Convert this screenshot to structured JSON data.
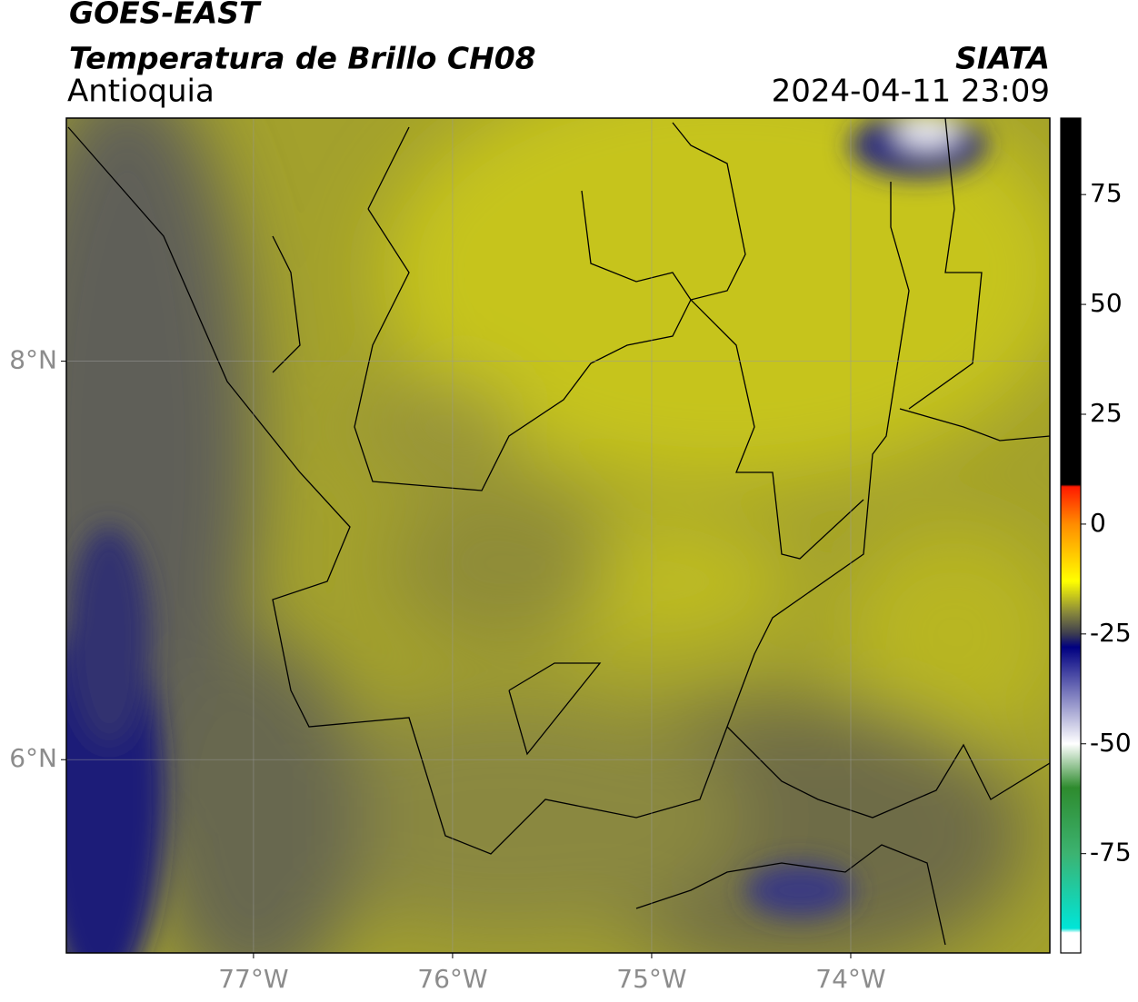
{
  "header": {
    "title": "GOES-EAST",
    "subtitle": "Temperatura de Brillo CH08",
    "region": "Antioquia",
    "source": "SIATA",
    "datetime": "2024-04-11 23:09"
  },
  "map": {
    "xlim": [
      -77.94,
      -73.0
    ],
    "ylim": [
      5.03,
      9.22
    ],
    "grid": true,
    "xticks": [
      {
        "value": -77,
        "label": "77°W"
      },
      {
        "value": -76,
        "label": "76°W"
      },
      {
        "value": -75,
        "label": "75°W"
      },
      {
        "value": -74,
        "label": "74°W"
      }
    ],
    "yticks": [
      {
        "value": 8,
        "label": "8°N"
      },
      {
        "value": 6,
        "label": "6°N"
      }
    ]
  },
  "colorbar": {
    "clim": [
      -97.6,
      92.4
    ],
    "ticks": [
      75,
      50,
      25,
      0,
      -25,
      -50,
      -75
    ],
    "stops": [
      {
        "value": 92.4,
        "color": "#000000"
      },
      {
        "value": 9,
        "color": "#000000"
      },
      {
        "value": 8.5,
        "color": "#ff1a00"
      },
      {
        "value": 0,
        "color": "#ff8c00"
      },
      {
        "value": -13,
        "color": "#ffff00"
      },
      {
        "value": -20,
        "color": "#8a8a3a"
      },
      {
        "value": -25,
        "color": "#3c3c50"
      },
      {
        "value": -28,
        "color": "#000080"
      },
      {
        "value": -50,
        "color": "#ffffff"
      },
      {
        "value": -60,
        "color": "#2e8b2e"
      },
      {
        "value": -75,
        "color": "#3cb371"
      },
      {
        "value": -92,
        "color": "#00e5d8"
      },
      {
        "value": -93,
        "color": "#ffffff"
      },
      {
        "value": -97.6,
        "color": "#ffffff"
      }
    ]
  }
}
